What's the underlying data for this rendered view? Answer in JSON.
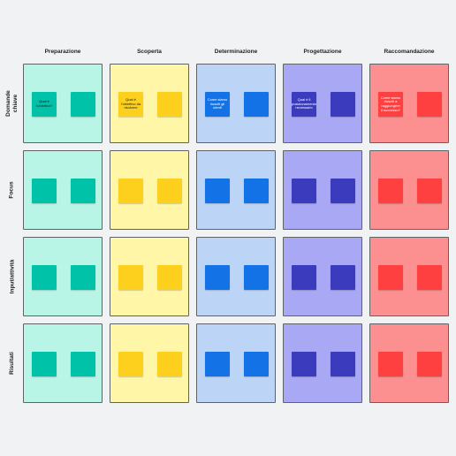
{
  "columns": [
    {
      "label": "Preparazione",
      "bg": "#b8f5e6",
      "note": "#00c2a8",
      "note_text_color": "#1a1a1a"
    },
    {
      "label": "Scoperta",
      "bg": "#fff6a8",
      "note": "#fcd01c",
      "note_text_color": "#1a1a1a"
    },
    {
      "label": "Determinazione",
      "bg": "#bcd5f7",
      "note": "#1373e6",
      "note_text_color": "#ffffff"
    },
    {
      "label": "Progettazione",
      "bg": "#a9a8f5",
      "note": "#3a3cbd",
      "note_text_color": "#ffffff"
    },
    {
      "label": "Raccomandazione",
      "bg": "#fc8f8f",
      "note": "#ff4040",
      "note_text_color": "#ffffff"
    }
  ],
  "rows": [
    {
      "label": "Domande\nchiave"
    },
    {
      "label": "Focus"
    },
    {
      "label": "Input/attività"
    },
    {
      "label": "Risultati"
    }
  ],
  "key_question_notes": [
    "Qual è l'obiettivo?",
    "Qual è l'obiettivo da risolvere",
    "Come siamo riusciti gli utenti",
    "Qual è il posizionamento necessario",
    "Come siamo riusciti a raggiungere il successo?"
  ]
}
